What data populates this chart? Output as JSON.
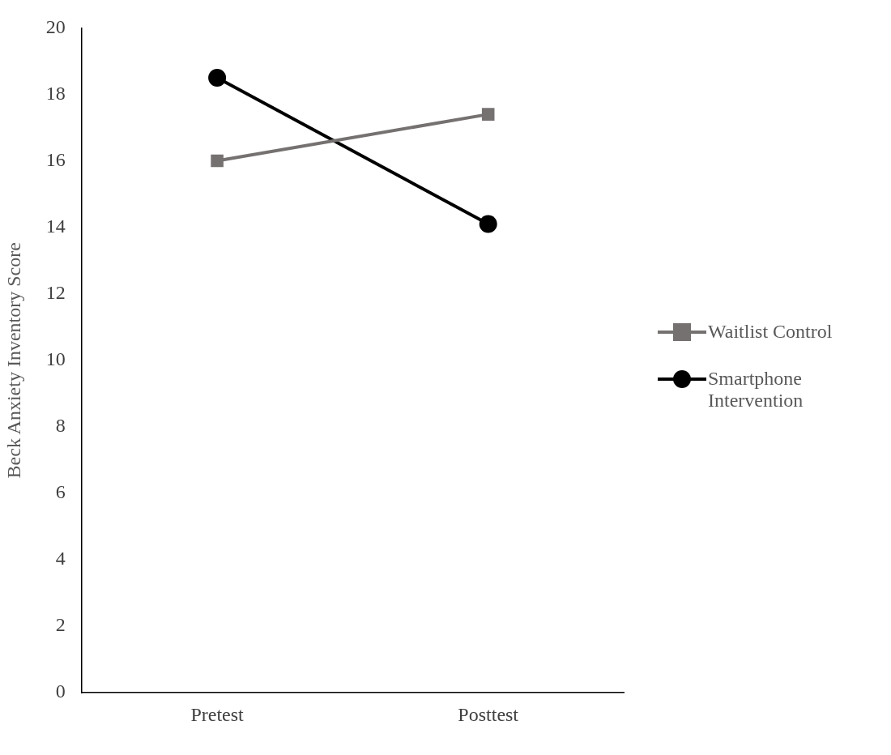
{
  "chart_data": {
    "type": "line",
    "ylabel": "Beck Anxiety Inventory Score",
    "categories": [
      "Pretest",
      "Posttest"
    ],
    "series": [
      {
        "name": "Waitlist Control",
        "color": "#767171",
        "marker": "square",
        "values": [
          16.0,
          17.4
        ]
      },
      {
        "name": "Smartphone Intervention",
        "color": "#000000",
        "marker": "circle",
        "values": [
          18.5,
          14.1
        ]
      }
    ],
    "ylim": [
      0,
      20
    ],
    "yticks": [
      0,
      2,
      4,
      6,
      8,
      10,
      12,
      14,
      16,
      18,
      20
    ],
    "grid": false,
    "legend": "right",
    "line_style": "solid"
  }
}
